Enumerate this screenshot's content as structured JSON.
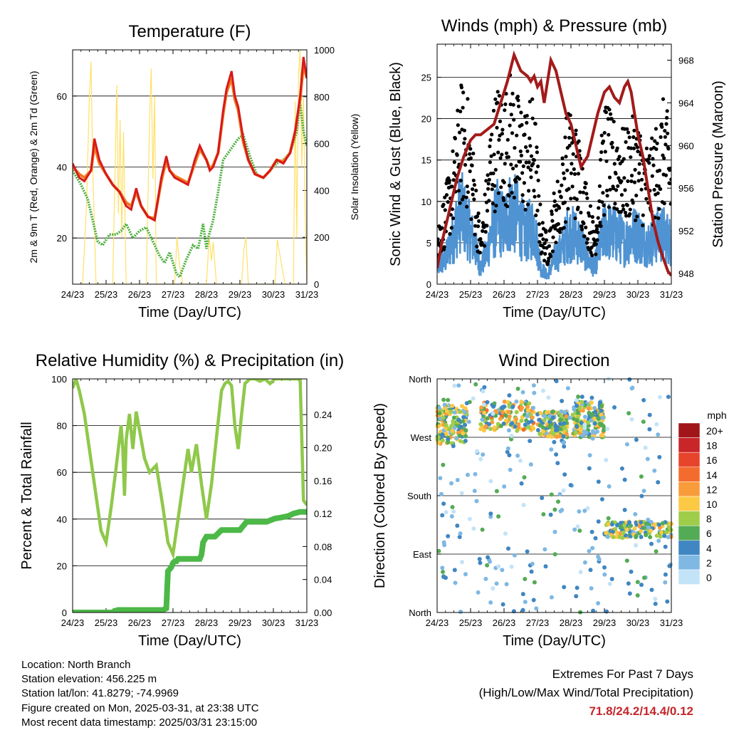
{
  "colors": {
    "temp2m": "#d7191c",
    "temp9m": "#f07a1f",
    "dewpoint": "#4daf3e",
    "solar": "#ffe066",
    "wind": "#4f93d2",
    "gust": "#000000",
    "pressure": "#a31a1a",
    "rh": "#8fc84a",
    "precip": "#4cb847",
    "extremes": "#c3272b"
  },
  "chart_data": [
    {
      "type": "line",
      "title": "Temperature (F)",
      "xlabel": "Time (Day/UTC)",
      "ylabel": "2m & 9m T (Red, Orange) & 2m Td (Green)",
      "ylabel_right": "Solar Insolation (Yellow)",
      "x_ticks": [
        "24/23",
        "25/23",
        "26/23",
        "27/23",
        "28/23",
        "29/23",
        "30/23",
        "31/23"
      ],
      "xlim": [
        0,
        7
      ],
      "ylim": [
        7,
        73
      ],
      "y_ticks": [
        20,
        40,
        60
      ],
      "ylim_right": [
        0,
        1000
      ],
      "y_ticks_right": [
        0,
        200,
        400,
        600,
        800,
        1000
      ],
      "series": [
        {
          "name": "2m T",
          "x": [
            0,
            0.2,
            0.35,
            0.55,
            0.65,
            0.8,
            1.0,
            1.2,
            1.4,
            1.6,
            1.75,
            1.9,
            2.05,
            2.25,
            2.45,
            2.65,
            2.8,
            2.9,
            3.05,
            3.25,
            3.45,
            3.65,
            3.8,
            4.0,
            4.1,
            4.2,
            4.35,
            4.5,
            4.6,
            4.75,
            4.85,
            4.95,
            5.1,
            5.25,
            5.45,
            5.7,
            5.9,
            6.1,
            6.3,
            6.5,
            6.65,
            6.8,
            6.9,
            7.0
          ],
          "values": [
            41,
            37,
            36,
            39,
            48,
            42,
            38,
            35,
            33,
            29,
            28,
            34,
            29,
            26,
            25,
            37,
            43,
            39,
            37,
            36,
            35,
            42,
            46,
            42,
            39,
            40,
            44,
            56,
            62,
            67,
            60,
            57,
            48,
            42,
            38,
            37,
            39,
            42,
            41,
            44,
            50,
            60,
            71,
            65
          ]
        },
        {
          "name": "9m T",
          "x": [
            0,
            0.2,
            0.35,
            0.55,
            0.65,
            0.8,
            1.0,
            1.2,
            1.4,
            1.6,
            1.75,
            1.9,
            2.05,
            2.25,
            2.45,
            2.65,
            2.8,
            2.9,
            3.05,
            3.25,
            3.45,
            3.65,
            3.8,
            4.0,
            4.1,
            4.2,
            4.35,
            4.5,
            4.6,
            4.75,
            4.85,
            4.95,
            5.1,
            5.25,
            5.45,
            5.7,
            5.9,
            6.1,
            6.3,
            6.5,
            6.65,
            6.8,
            6.9,
            7.0
          ],
          "values": [
            40,
            38,
            37,
            39,
            46,
            41,
            38,
            35,
            33,
            30,
            29,
            33,
            29,
            26,
            25.5,
            36,
            42,
            39,
            37.5,
            36.5,
            35.5,
            41,
            45,
            42,
            39.5,
            40.5,
            44,
            55,
            61,
            65,
            59,
            56,
            47,
            42,
            38,
            37,
            39,
            42,
            41.5,
            44,
            50,
            59,
            69,
            65
          ]
        },
        {
          "name": "2m Td",
          "x": [
            0,
            0.25,
            0.45,
            0.6,
            0.75,
            0.9,
            1.1,
            1.3,
            1.45,
            1.6,
            1.8,
            2.0,
            2.2,
            2.4,
            2.6,
            2.75,
            2.9,
            3.1,
            3.2,
            3.4,
            3.6,
            3.75,
            3.9,
            4.0,
            4.05,
            4.2,
            4.35,
            4.5,
            4.65,
            4.8,
            4.95,
            5.1,
            5.3,
            5.5,
            5.7,
            5.9,
            6.1,
            6.3,
            6.5,
            6.7,
            6.8,
            6.9,
            7.0
          ],
          "values": [
            39,
            35,
            31,
            25,
            19,
            18,
            21,
            21,
            22,
            24,
            20,
            22,
            23,
            19,
            15,
            13,
            16,
            10,
            9,
            14,
            18,
            17,
            24,
            17,
            20,
            25,
            33,
            42,
            44,
            46,
            48,
            49,
            43,
            38,
            37,
            39,
            41,
            42,
            44,
            50,
            58,
            50,
            46
          ]
        },
        {
          "name": "Solar Insolation",
          "axis": "right",
          "x": [
            0,
            0.3,
            0.42,
            0.5,
            0.55,
            0.6,
            0.7,
            0.8,
            1.0,
            1.2,
            1.32,
            1.37,
            1.42,
            1.47,
            1.52,
            1.6,
            1.8,
            2.0,
            2.2,
            2.3,
            2.35,
            2.4,
            2.45,
            2.5,
            2.7,
            2.9,
            3.05,
            3.12,
            3.2,
            3.3,
            3.5,
            3.8,
            4.0,
            4.08,
            4.15,
            4.2,
            4.3,
            4.4,
            4.6,
            4.9,
            5.05,
            5.12,
            5.18,
            5.25,
            5.4,
            5.6,
            5.8,
            6.05,
            6.12,
            6.2,
            6.35,
            6.5,
            6.6,
            6.65,
            6.7,
            6.75,
            6.8,
            6.85,
            6.9,
            6.95,
            7.0
          ],
          "values": [
            0,
            0,
            350,
            800,
            950,
            500,
            0,
            0,
            0,
            0,
            850,
            300,
            700,
            200,
            650,
            0,
            0,
            0,
            0,
            700,
            920,
            450,
            800,
            0,
            0,
            0,
            0,
            200,
            80,
            0,
            0,
            0,
            0,
            200,
            100,
            180,
            0,
            0,
            0,
            0,
            0,
            150,
            200,
            0,
            0,
            0,
            0,
            0,
            190,
            120,
            0,
            0,
            0,
            780,
            200,
            900,
            1000,
            500,
            800,
            300,
            0
          ]
        }
      ]
    },
    {
      "type": "line",
      "title": "Winds (mph) & Pressure (mb)",
      "xlabel": "Time (Day/UTC)",
      "ylabel": "Sonic Wind & Gust (Blue, Black)",
      "ylabel_right": "Station Pressure (Maroon)",
      "x_ticks": [
        "24/23",
        "25/23",
        "26/23",
        "27/23",
        "28/23",
        "29/23",
        "30/23",
        "31/23"
      ],
      "xlim": [
        0,
        7
      ],
      "ylim": [
        0,
        29
      ],
      "y_ticks": [
        0,
        5,
        10,
        15,
        20,
        25
      ],
      "ylim_right": [
        947,
        969.5
      ],
      "y_ticks_right": [
        948,
        952,
        956,
        960,
        964,
        968
      ],
      "series": [
        {
          "name": "Sonic Wind",
          "x": [
            0,
            0.25,
            0.5,
            0.7,
            0.9,
            1.1,
            1.3,
            1.5,
            1.6,
            1.8,
            2.0,
            2.2,
            2.4,
            2.6,
            2.9,
            3.1,
            3.3,
            3.5,
            3.7,
            3.9,
            4.1,
            4.3,
            4.5,
            4.7,
            4.9,
            5.05,
            5.2,
            5.4,
            5.6,
            5.8,
            6.0,
            6.2,
            6.4,
            6.6,
            6.8,
            7.0
          ],
          "values": [
            2,
            3,
            6,
            9,
            7,
            5,
            2,
            4,
            6,
            8,
            7,
            9,
            8,
            6,
            7,
            2,
            1,
            3,
            4,
            6,
            6,
            5,
            3,
            2,
            5,
            7,
            6,
            6,
            5,
            6,
            6,
            5,
            5,
            6,
            6,
            5
          ]
        },
        {
          "name": "Gust",
          "x": [
            0,
            0.25,
            0.5,
            0.7,
            0.9,
            1.1,
            1.3,
            1.5,
            1.6,
            1.8,
            2.0,
            2.2,
            2.4,
            2.6,
            2.9,
            3.1,
            3.3,
            3.5,
            3.7,
            3.9,
            4.1,
            4.3,
            4.5,
            4.7,
            4.9,
            5.05,
            5.2,
            5.4,
            5.6,
            5.8,
            6.0,
            6.2,
            6.4,
            6.6,
            6.8,
            7.0
          ],
          "values": [
            5,
            8,
            12,
            17,
            16,
            11,
            4,
            10,
            14,
            17,
            16,
            18,
            16,
            15,
            16,
            6,
            4,
            8,
            10,
            15,
            14,
            12,
            8,
            5,
            12,
            16,
            14,
            14,
            13,
            14,
            14,
            12,
            12,
            14,
            16,
            12
          ]
        },
        {
          "name": "Station Pressure",
          "axis": "right",
          "x": [
            0,
            0.15,
            0.3,
            0.45,
            0.6,
            0.8,
            1.0,
            1.15,
            1.3,
            1.5,
            1.7,
            1.9,
            2.1,
            2.3,
            2.5,
            2.7,
            2.8,
            2.9,
            3.0,
            3.1,
            3.2,
            3.3,
            3.4,
            3.55,
            3.7,
            3.85,
            4.0,
            4.15,
            4.3,
            4.5,
            4.65,
            4.8,
            5.0,
            5.15,
            5.3,
            5.45,
            5.6,
            5.7,
            5.8,
            5.9,
            6.0,
            6.15,
            6.3,
            6.45,
            6.6,
            6.75,
            6.9,
            7.0
          ],
          "values": [
            948.5,
            951,
            953,
            955,
            957,
            959,
            960.5,
            961,
            961,
            961.5,
            962,
            964,
            966,
            968.5,
            967,
            966.5,
            966,
            966.5,
            965.5,
            966,
            964,
            966,
            968,
            967,
            965,
            963,
            962,
            960,
            958,
            959,
            961,
            963,
            965,
            965.5,
            964.5,
            964,
            965.5,
            966,
            965,
            963,
            961,
            959,
            956,
            953,
            951,
            949.5,
            948.2,
            947.8
          ]
        }
      ]
    },
    {
      "type": "line",
      "title": "Relative Humidity (%) & Precipitation (in)",
      "xlabel": "Time (Day/UTC)",
      "ylabel": "Percent & Total Rainfall",
      "x_ticks": [
        "24/23",
        "25/23",
        "26/23",
        "27/23",
        "28/23",
        "29/23",
        "30/23",
        "31/23"
      ],
      "xlim": [
        0,
        7
      ],
      "ylim": [
        0,
        100
      ],
      "y_ticks": [
        0,
        20,
        40,
        60,
        80,
        100
      ],
      "ylim_right": [
        0,
        0.2833
      ],
      "y_ticks_right": [
        "0.00",
        "0.04",
        "0.08",
        "0.12",
        "0.16",
        "0.20",
        "0.24"
      ],
      "series": [
        {
          "name": "Relative Humidity",
          "x": [
            0,
            0.1,
            0.2,
            0.35,
            0.5,
            0.7,
            0.85,
            1.0,
            1.15,
            1.3,
            1.45,
            1.5,
            1.55,
            1.6,
            1.7,
            1.8,
            1.9,
            2.0,
            2.15,
            2.3,
            2.5,
            2.7,
            2.85,
            3.0,
            3.15,
            3.3,
            3.45,
            3.55,
            3.7,
            3.85,
            4.0,
            4.15,
            4.3,
            4.45,
            4.55,
            4.65,
            4.75,
            4.85,
            4.95,
            5.05,
            5.15,
            5.3,
            5.45,
            5.6,
            5.75,
            5.9,
            6.05,
            6.2,
            6.35,
            6.5,
            6.6,
            6.7,
            6.8,
            6.9,
            7.0
          ],
          "values": [
            96,
            100,
            95,
            85,
            70,
            50,
            35,
            30,
            45,
            62,
            80,
            70,
            50,
            74,
            85,
            70,
            86,
            78,
            66,
            60,
            63,
            45,
            30,
            25,
            40,
            55,
            70,
            60,
            72,
            55,
            40,
            55,
            75,
            95,
            98,
            99,
            97,
            80,
            70,
            85,
            98,
            100,
            100,
            99,
            100,
            98,
            100,
            100,
            100,
            100,
            100,
            100,
            100,
            48,
            46
          ]
        },
        {
          "name": "Total Precipitation",
          "axis": "right",
          "x": [
            0,
            1.2,
            1.25,
            1.3,
            1.35,
            1.4,
            2.7,
            2.8,
            2.85,
            2.95,
            3.0,
            3.05,
            3.1,
            3.15,
            3.25,
            3.4,
            3.8,
            3.85,
            3.9,
            4.0,
            4.25,
            4.4,
            4.45,
            4.55,
            4.8,
            5.0,
            5.2,
            5.45,
            5.8,
            6.05,
            6.2,
            6.45,
            6.6,
            6.8,
            7.0
          ],
          "values": [
            0,
            0,
            0.002,
            0.002,
            0.003,
            0.003,
            0.003,
            0.005,
            0.05,
            0.055,
            0.06,
            0.062,
            0.062,
            0.065,
            0.065,
            0.065,
            0.065,
            0.07,
            0.085,
            0.092,
            0.092,
            0.098,
            0.1,
            0.1,
            0.1,
            0.1,
            0.11,
            0.11,
            0.11,
            0.114,
            0.115,
            0.117,
            0.12,
            0.122,
            0.122
          ]
        }
      ]
    },
    {
      "type": "scatter",
      "title": "Wind Direction",
      "xlabel": "Time (Day/UTC)",
      "ylabel": "Direction (Colored By Speed)",
      "x_ticks": [
        "24/23",
        "25/23",
        "26/23",
        "27/23",
        "28/23",
        "29/23",
        "30/23",
        "31/23"
      ],
      "xlim": [
        0,
        7
      ],
      "ylim": [
        0,
        360
      ],
      "y_tick_labels": [
        "North",
        "East",
        "South",
        "West",
        "North"
      ],
      "legend": {
        "title": "mph",
        "labels": [
          "20+",
          "18",
          "16",
          "14",
          "12",
          "10",
          "8",
          "6",
          "4",
          "2",
          "0"
        ],
        "colors": [
          "#a01519",
          "#c9262a",
          "#e8432b",
          "#f36c2d",
          "#f89c3a",
          "#fcc945",
          "#9fcd4a",
          "#54ab55",
          "#3f86c2",
          "#7eb8e3",
          "#c3e3f7"
        ]
      },
      "clusters": [
        {
          "x": [
            0,
            0.9
          ],
          "dir": [
            260,
            320
          ],
          "speed": [
            2,
            12
          ]
        },
        {
          "x": [
            1.3,
            2.9
          ],
          "dir": [
            280,
            325
          ],
          "speed": [
            2,
            14
          ]
        },
        {
          "x": [
            3.0,
            3.9
          ],
          "dir": [
            270,
            310
          ],
          "speed": [
            2,
            12
          ]
        },
        {
          "x": [
            4.05,
            5.0
          ],
          "dir": [
            270,
            325
          ],
          "speed": [
            1,
            12
          ]
        },
        {
          "x": [
            5.0,
            7.0
          ],
          "dir": [
            115,
            140
          ],
          "speed": [
            2,
            12
          ]
        },
        {
          "x": [
            0,
            7.0
          ],
          "dir": [
            0,
            360
          ],
          "speed": [
            0,
            6
          ]
        }
      ]
    }
  ],
  "info": {
    "location": "Location: North Branch",
    "elevation": "Station elevation: 456.225 m",
    "latlon": "Station lat/lon: 41.8279; -74.9969",
    "created": "Figure created on Mon, 2025-03-31, at 23:38 UTC",
    "recent": "Most recent data timestamp: 2025/03/31 23:15:00"
  },
  "extremes": {
    "title": "Extremes For Past 7 Days",
    "subtitle": "(High/Low/Max Wind/Total Precipitation)",
    "values": "71.8/24.2/14.4/0.12"
  }
}
